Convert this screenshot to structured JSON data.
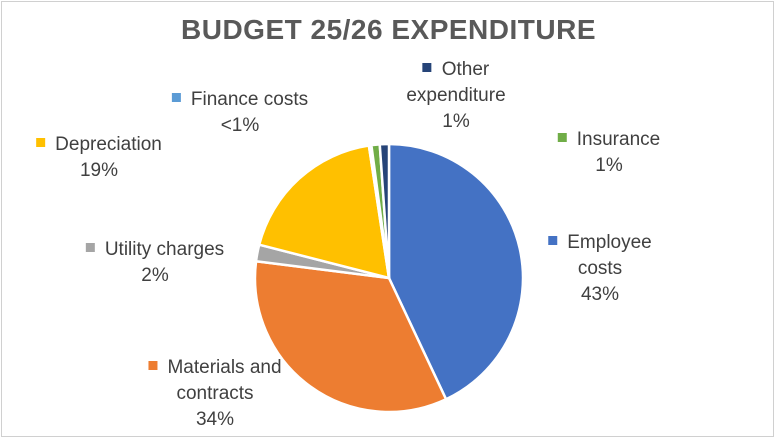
{
  "chart_data": {
    "type": "pie",
    "title": "BUDGET 25/26 EXPENDITURE",
    "slices": [
      {
        "label_lines": [
          "Employee",
          "costs"
        ],
        "pct_label": "43%",
        "value": 43.0,
        "color": "#4472C4"
      },
      {
        "label_lines": [
          "Materials and",
          "contracts"
        ],
        "pct_label": "34%",
        "value": 34.0,
        "color": "#ED7D31"
      },
      {
        "label_lines": [
          "Utility charges"
        ],
        "pct_label": "2%",
        "value": 2.0,
        "color": "#A5A5A5"
      },
      {
        "label_lines": [
          "Depreciation"
        ],
        "pct_label": "19%",
        "value": 18.6,
        "color": "#FFC000"
      },
      {
        "label_lines": [
          "Finance costs"
        ],
        "pct_label": "<1%",
        "value": 0.3,
        "color": "#5B9BD5"
      },
      {
        "label_lines": [
          "Insurance"
        ],
        "pct_label": "1%",
        "value": 1.0,
        "color": "#70AD47"
      },
      {
        "label_lines": [
          "Other",
          "expenditure"
        ],
        "pct_label": "1%",
        "value": 1.1,
        "color": "#264478"
      }
    ]
  }
}
